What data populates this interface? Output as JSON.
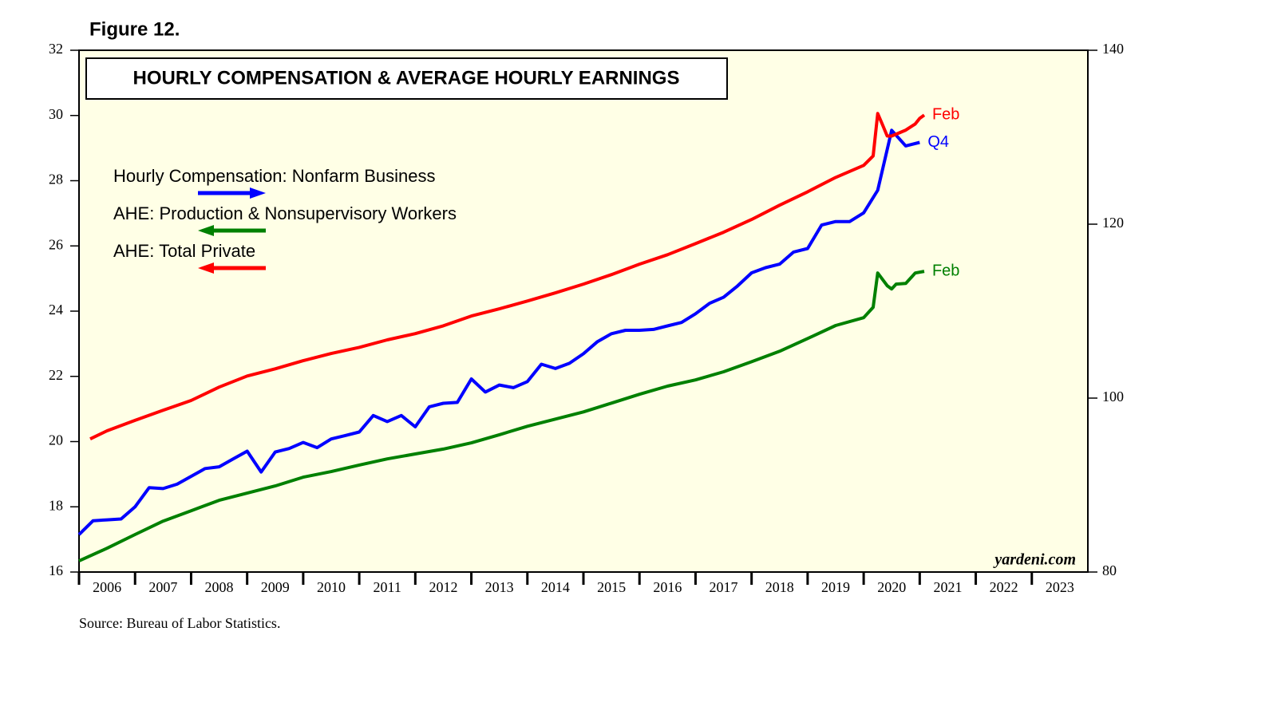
{
  "chart_data": {
    "type": "line",
    "figure_label": "Figure 12.",
    "title": "HOURLY COMPENSATION & AVERAGE HOURLY EARNINGS",
    "source": "Source: Bureau of Labor Statistics.",
    "watermark": "yardeni.com",
    "xlim": [
      2006,
      2024
    ],
    "xticks": [
      2006,
      2007,
      2008,
      2009,
      2010,
      2011,
      2012,
      2013,
      2014,
      2015,
      2016,
      2017,
      2018,
      2019,
      2020,
      2021,
      2022,
      2023
    ],
    "ylim": [
      16,
      32
    ],
    "yticks": [
      16,
      18,
      20,
      22,
      24,
      26,
      28,
      30,
      32
    ],
    "y2lim": [
      80,
      140
    ],
    "y2ticks": [
      80,
      100,
      120,
      140
    ],
    "background": "#ffffe6",
    "series": [
      {
        "name": "Hourly Compensation: Nonfarm Business",
        "color": "#0000ff",
        "axis": "y2",
        "end_label": "Q4",
        "x": [
          2006.0,
          2006.25,
          2006.5,
          2006.75,
          2007.0,
          2007.25,
          2007.5,
          2007.75,
          2008.0,
          2008.25,
          2008.5,
          2008.75,
          2009.0,
          2009.25,
          2009.5,
          2009.75,
          2010.0,
          2010.25,
          2010.5,
          2010.75,
          2011.0,
          2011.25,
          2011.5,
          2011.75,
          2012.0,
          2012.25,
          2012.5,
          2012.75,
          2013.0,
          2013.25,
          2013.5,
          2013.75,
          2014.0,
          2014.25,
          2014.5,
          2014.75,
          2015.0,
          2015.25,
          2015.5,
          2015.75,
          2016.0,
          2016.25,
          2016.5,
          2016.75,
          2017.0,
          2017.25,
          2017.5,
          2017.75,
          2018.0,
          2018.25,
          2018.5,
          2018.75,
          2019.0,
          2019.25,
          2019.5,
          2019.75,
          2020.0,
          2020.25,
          2020.5,
          2020.75,
          2021.0
        ],
        "values": [
          84.3,
          85.9,
          86.0,
          86.1,
          87.5,
          89.7,
          89.6,
          90.1,
          91.0,
          91.9,
          92.1,
          93.0,
          93.9,
          91.5,
          93.8,
          94.2,
          94.9,
          94.3,
          95.3,
          95.7,
          96.1,
          98.0,
          97.3,
          98.0,
          96.7,
          99.0,
          99.4,
          99.5,
          102.2,
          100.7,
          101.5,
          101.2,
          101.9,
          103.9,
          103.4,
          104.0,
          105.1,
          106.5,
          107.4,
          107.8,
          107.8,
          107.9,
          108.3,
          108.7,
          109.7,
          110.9,
          111.6,
          112.9,
          114.4,
          115.0,
          115.4,
          116.8,
          117.2,
          119.9,
          120.3,
          120.3,
          121.3,
          123.9,
          130.8,
          129.0,
          129.4
        ]
      },
      {
        "name": "AHE: Production & Nonsupervisory Workers",
        "color": "#008000",
        "axis": "y",
        "end_label": "Feb",
        "x": [
          2006.0,
          2006.5,
          2007.0,
          2007.5,
          2008.0,
          2008.5,
          2009.0,
          2009.5,
          2010.0,
          2010.5,
          2011.0,
          2011.5,
          2012.0,
          2012.5,
          2013.0,
          2013.5,
          2014.0,
          2014.5,
          2015.0,
          2015.5,
          2016.0,
          2016.5,
          2017.0,
          2017.5,
          2018.0,
          2018.5,
          2019.0,
          2019.5,
          2020.0,
          2020.17,
          2020.25,
          2020.42,
          2020.5,
          2020.58,
          2020.75,
          2020.92,
          2021.08
        ],
        "values": [
          16.34,
          16.73,
          17.15,
          17.56,
          17.88,
          18.2,
          18.42,
          18.64,
          18.91,
          19.08,
          19.28,
          19.47,
          19.62,
          19.77,
          19.96,
          20.21,
          20.47,
          20.69,
          20.91,
          21.18,
          21.45,
          21.7,
          21.89,
          22.14,
          22.45,
          22.77,
          23.16,
          23.56,
          23.8,
          24.12,
          25.17,
          24.78,
          24.68,
          24.83,
          24.85,
          25.17,
          25.22
        ]
      },
      {
        "name": "AHE: Total Private",
        "color": "#ff0000",
        "axis": "y",
        "end_label": "Feb",
        "x": [
          2006.2,
          2006.5,
          2007.0,
          2007.5,
          2008.0,
          2008.5,
          2009.0,
          2009.5,
          2010.0,
          2010.5,
          2011.0,
          2011.5,
          2012.0,
          2012.5,
          2013.0,
          2013.5,
          2014.0,
          2014.5,
          2015.0,
          2015.5,
          2016.0,
          2016.5,
          2017.0,
          2017.5,
          2018.0,
          2018.5,
          2019.0,
          2019.5,
          2020.0,
          2020.17,
          2020.25,
          2020.33,
          2020.42,
          2020.5,
          2020.75,
          2020.92,
          2021.0,
          2021.08
        ],
        "values": [
          20.08,
          20.33,
          20.65,
          20.96,
          21.26,
          21.67,
          22.01,
          22.23,
          22.48,
          22.7,
          22.89,
          23.12,
          23.31,
          23.55,
          23.85,
          24.07,
          24.31,
          24.56,
          24.83,
          25.12,
          25.44,
          25.73,
          26.07,
          26.42,
          26.81,
          27.25,
          27.66,
          28.1,
          28.47,
          28.76,
          30.06,
          29.74,
          29.37,
          29.37,
          29.55,
          29.74,
          29.91,
          30.01
        ]
      }
    ]
  }
}
